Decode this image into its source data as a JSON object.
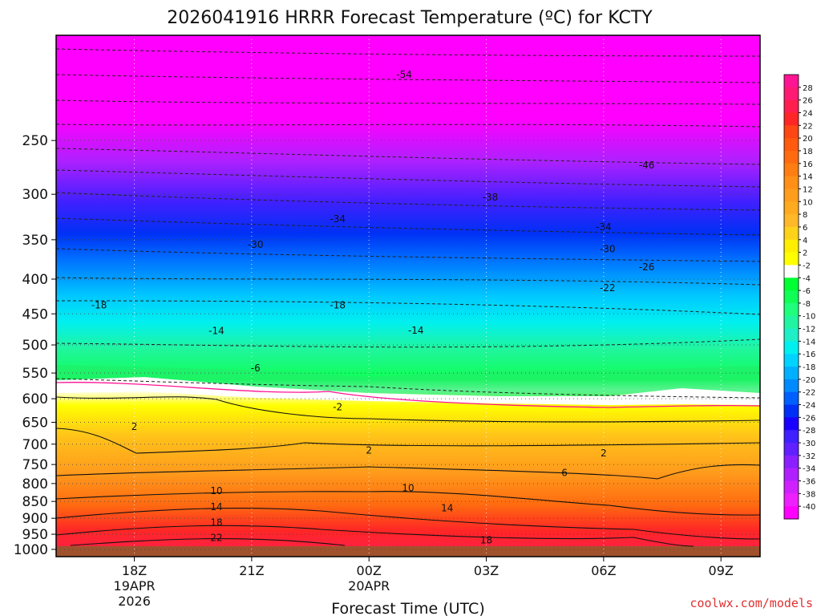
{
  "chart_data": {
    "type": "heatmap",
    "title": "2026041916 HRRR Forecast Temperature (ºC) for KCTY",
    "xlabel": "Forecast Time (UTC)",
    "ylabel": "",
    "credit": "coolwx.com/models",
    "x_range_hours_utc": [
      16,
      34
    ],
    "x_ticks": [
      {
        "hour": 18,
        "lines": [
          "18Z",
          "19APR",
          "2026"
        ]
      },
      {
        "hour": 21,
        "lines": [
          "21Z"
        ]
      },
      {
        "hour": 24,
        "lines": [
          "00Z",
          "20APR"
        ]
      },
      {
        "hour": 27,
        "lines": [
          "03Z"
        ]
      },
      {
        "hour": 30,
        "lines": [
          "06Z"
        ]
      },
      {
        "hour": 33,
        "lines": [
          "09Z"
        ]
      }
    ],
    "y_scale": "log-pressure",
    "y_range_hpa": [
      1025,
      175
    ],
    "y_ticks": [
      250,
      300,
      350,
      400,
      450,
      500,
      550,
      600,
      650,
      700,
      750,
      800,
      850,
      900,
      950,
      1000
    ],
    "colorbar_labels": [
      28,
      26,
      24,
      22,
      20,
      18,
      16,
      14,
      12,
      10,
      8,
      6,
      4,
      2,
      -2,
      -4,
      -6,
      -8,
      -10,
      -12,
      -14,
      -16,
      -18,
      -20,
      -22,
      -24,
      -26,
      -28,
      -30,
      -32,
      -34,
      -36,
      -38,
      -40
    ],
    "colorbar_colors": [
      "#ff1493",
      "#ff1a73",
      "#ff1f4f",
      "#ff2626",
      "#ff4713",
      "#ff5a0d",
      "#ff6b10",
      "#ff7d12",
      "#ff8f16",
      "#ff9d1c",
      "#ffaa1f",
      "#ffb828",
      "#ffd21a",
      "#ffee00",
      "#ffff00",
      "#ffffff",
      "#00ff33",
      "#10ff55",
      "#20ff7b",
      "#21f5a1",
      "#1fefc6",
      "#00f0f0",
      "#00d3ff",
      "#00b0ff",
      "#008aff",
      "#0060ff",
      "#0030f5",
      "#1a00ff",
      "#4020ff",
      "#6020ff",
      "#8a20ff",
      "#b020ff",
      "#d020ff",
      "#ef20ff",
      "#ff00ff"
    ],
    "contour_labels": [
      {
        "value": "-54",
        "hour": 24.9,
        "p": 200
      },
      {
        "value": "-46",
        "hour": 31.1,
        "p": 272
      },
      {
        "value": "-38",
        "hour": 27.1,
        "p": 303
      },
      {
        "value": "-34",
        "hour": 23.2,
        "p": 326
      },
      {
        "value": "-34",
        "hour": 30.0,
        "p": 335
      },
      {
        "value": "-30",
        "hour": 21.1,
        "p": 356
      },
      {
        "value": "-30",
        "hour": 30.1,
        "p": 361
      },
      {
        "value": "-26",
        "hour": 31.1,
        "p": 384
      },
      {
        "value": "-22",
        "hour": 30.1,
        "p": 412
      },
      {
        "value": "-18",
        "hour": 17.1,
        "p": 437
      },
      {
        "value": "-18",
        "hour": 23.2,
        "p": 437
      },
      {
        "value": "-14",
        "hour": 20.1,
        "p": 477
      },
      {
        "value": "-14",
        "hour": 25.2,
        "p": 476
      },
      {
        "value": "-6",
        "hour": 21.1,
        "p": 541
      },
      {
        "value": "-2",
        "hour": 23.2,
        "p": 617
      },
      {
        "value": "2",
        "hour": 18.0,
        "p": 660
      },
      {
        "value": "2",
        "hour": 24.0,
        "p": 715
      },
      {
        "value": "2",
        "hour": 30.0,
        "p": 722
      },
      {
        "value": "6",
        "hour": 29.0,
        "p": 771
      },
      {
        "value": "10",
        "hour": 20.1,
        "p": 820
      },
      {
        "value": "10",
        "hour": 25.0,
        "p": 812
      },
      {
        "value": "14",
        "hour": 20.1,
        "p": 866
      },
      {
        "value": "14",
        "hour": 26.0,
        "p": 870
      },
      {
        "value": "18",
        "hour": 20.1,
        "p": 913
      },
      {
        "value": "18",
        "hour": 27.0,
        "p": 970
      },
      {
        "value": "22",
        "hour": 20.1,
        "p": 962
      }
    ]
  }
}
